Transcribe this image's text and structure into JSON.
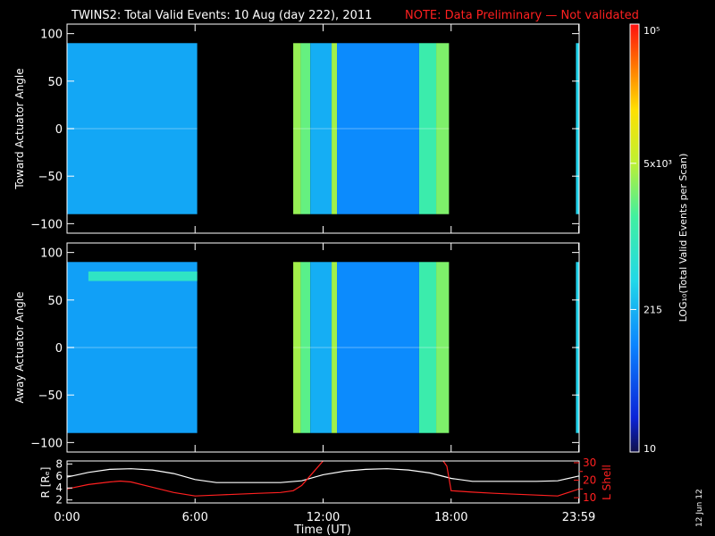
{
  "header": {
    "title": "TWINS2: Total Valid Events: 10 Aug (day 222), 2011",
    "note": "NOTE: Data Preliminary — Not validated",
    "note_color": "#ff2020"
  },
  "footer": {
    "date_stamp": "12 Jun 12"
  },
  "chart_data": [
    {
      "type": "heatmap",
      "panel": "toward",
      "ylabel": "Toward Actuator Angle",
      "ylim": [
        -110,
        110
      ],
      "yticks": [
        "100",
        "50",
        "0",
        "−50",
        "−100"
      ],
      "ytick_values": [
        100,
        50,
        0,
        -50,
        -100
      ],
      "angle_range": [
        -90,
        90
      ],
      "x_range_hours": [
        0,
        24
      ],
      "data_intervals_hours": [
        [
          0.0,
          6.1
        ],
        [
          10.6,
          17.9
        ],
        [
          23.85,
          24.0
        ]
      ],
      "column_log_events": [
        {
          "x": [
            0.0,
            6.1
          ],
          "value": 2.25
        },
        {
          "x": [
            10.6,
            10.95
          ],
          "value": 3.55
        },
        {
          "x": [
            10.95,
            11.4
          ],
          "value": 3.35
        },
        {
          "x": [
            11.4,
            12.4
          ],
          "value": 2.3
        },
        {
          "x": [
            12.4,
            12.65
          ],
          "value": 3.6
        },
        {
          "x": [
            12.65,
            16.5
          ],
          "value": 2.05
        },
        {
          "x": [
            16.5,
            17.3
          ],
          "value": 3.1
        },
        {
          "x": [
            17.3,
            17.9
          ],
          "value": 3.45
        },
        {
          "x": [
            23.85,
            24.0
          ],
          "value": 2.55
        }
      ]
    },
    {
      "type": "heatmap",
      "panel": "away",
      "ylabel": "Away Actuator Angle",
      "ylim": [
        -110,
        110
      ],
      "yticks": [
        "100",
        "50",
        "0",
        "−50",
        "−100"
      ],
      "ytick_values": [
        100,
        50,
        0,
        -50,
        -100
      ],
      "angle_range": [
        -90,
        90
      ],
      "x_range_hours": [
        0,
        24
      ],
      "data_intervals_hours": [
        [
          0.0,
          6.1
        ],
        [
          10.6,
          17.9
        ],
        [
          23.85,
          24.0
        ]
      ],
      "column_log_events": [
        {
          "x": [
            0.0,
            6.1
          ],
          "value": 2.2
        },
        {
          "x": [
            10.6,
            10.95
          ],
          "value": 3.6
        },
        {
          "x": [
            10.95,
            11.4
          ],
          "value": 3.3
        },
        {
          "x": [
            11.4,
            12.4
          ],
          "value": 2.3
        },
        {
          "x": [
            12.4,
            12.65
          ],
          "value": 3.6
        },
        {
          "x": [
            12.65,
            16.5
          ],
          "value": 2.05
        },
        {
          "x": [
            16.5,
            17.3
          ],
          "value": 3.1
        },
        {
          "x": [
            17.3,
            17.9
          ],
          "value": 3.45
        },
        {
          "x": [
            23.85,
            24.0
          ],
          "value": 2.55
        }
      ],
      "band_feature": {
        "angle_approx": 75,
        "x": [
          1.0,
          6.1
        ],
        "value": 2.9
      }
    },
    {
      "type": "line",
      "panel": "orbit",
      "xlabel": "Time (UT)",
      "xticks": [
        "0:00",
        "6:00",
        "12:00",
        "18:00",
        "23:59"
      ],
      "xtick_values": [
        0,
        6,
        12,
        18,
        23.98
      ],
      "left_axis": {
        "label": "R [Rₑ]",
        "ylim": [
          1.5,
          8.5
        ],
        "yticks": [
          "8",
          "6",
          "4",
          "2"
        ],
        "ytick_values": [
          8,
          6,
          4,
          2
        ]
      },
      "right_axis": {
        "label": "L Shell",
        "ylim": [
          7,
          31
        ],
        "yticks": [
          "30",
          "20",
          "10"
        ],
        "ytick_values": [
          30,
          20,
          10
        ],
        "minor_ticks": [
          25,
          15
        ],
        "color": "#ff2020"
      },
      "series": [
        {
          "color": "#ffffff",
          "axis": "left",
          "x": [
            0,
            1,
            2,
            3,
            4,
            5,
            6,
            7,
            8,
            9,
            10,
            11,
            12,
            13,
            14,
            15,
            16,
            17,
            18,
            19,
            20,
            21,
            22,
            23,
            24
          ],
          "y": [
            5.8,
            6.6,
            7.1,
            7.2,
            7.0,
            6.4,
            5.4,
            4.9,
            4.9,
            4.9,
            4.9,
            5.2,
            6.2,
            6.8,
            7.1,
            7.2,
            7.0,
            6.5,
            5.6,
            5.1,
            5.1,
            5.1,
            5.1,
            5.2,
            6.0
          ]
        },
        {
          "color": "#ff2020",
          "axis": "right",
          "x": [
            0,
            1,
            2,
            2.5,
            3,
            4,
            5,
            6,
            7,
            8,
            9,
            10,
            10.6,
            11,
            11.5,
            12,
            12.4,
            17.4,
            17.8,
            18,
            19,
            20,
            21,
            22,
            23,
            24
          ],
          "y": [
            15,
            17.5,
            19,
            19.5,
            19,
            16,
            13,
            11,
            11.5,
            12,
            12.5,
            13,
            14,
            17,
            24,
            31,
            35,
            35,
            28,
            14,
            13.2,
            12.5,
            12,
            11.5,
            11,
            15
          ]
        }
      ]
    },
    {
      "type": "heatmap",
      "panel": "colorbar",
      "label": "LOG₁₀(Total Valid Events per Scan)",
      "scale": "log",
      "range": [
        10,
        100000
      ],
      "tick_labels": [
        "10⁵",
        "5x10³",
        "215",
        "10"
      ],
      "tick_values": [
        100000,
        5000,
        215,
        10
      ],
      "colormap": [
        "#10104a",
        "#0a23d8",
        "#0a84ff",
        "#20d8e8",
        "#40f0a0",
        "#c0f030",
        "#ffe000",
        "#ff7a00",
        "#ff1010"
      ]
    }
  ]
}
